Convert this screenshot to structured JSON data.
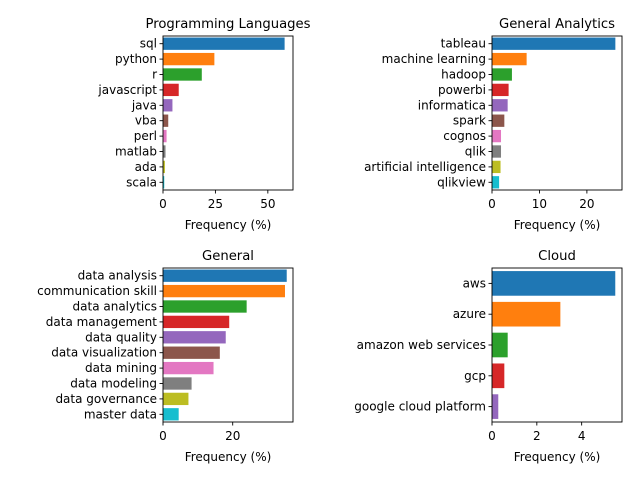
{
  "chart_data": [
    {
      "type": "bar",
      "orientation": "horizontal",
      "title": "Programming Languages",
      "xlabel": "Frequency (%)",
      "ylabel": "",
      "categories": [
        "sql",
        "python",
        "r",
        "javascript",
        "java",
        "vba",
        "perl",
        "matlab",
        "ada",
        "scala"
      ],
      "values": [
        58,
        24.5,
        18.5,
        7.5,
        4.5,
        2.5,
        1.7,
        1.2,
        0.9,
        0.6
      ],
      "xlim": [
        0,
        62
      ],
      "xticks": [
        0,
        25,
        50
      ],
      "colors": [
        "#1f77b4",
        "#ff7f0e",
        "#2ca02c",
        "#d62728",
        "#9467bd",
        "#8c564b",
        "#e377c2",
        "#7f7f7f",
        "#bcbd22",
        "#17becf"
      ]
    },
    {
      "type": "bar",
      "orientation": "horizontal",
      "title": "General Analytics",
      "xlabel": "Frequency (%)",
      "ylabel": "",
      "categories": [
        "tableau",
        "machine learning",
        "hadoop",
        "powerbi",
        "informatica",
        "spark",
        "cognos",
        "qlik",
        "artificial intelligence",
        "qlikview"
      ],
      "values": [
        26,
        7.3,
        4.2,
        3.5,
        3.3,
        2.6,
        1.9,
        1.9,
        1.8,
        1.5
      ],
      "xlim": [
        0,
        27.4
      ],
      "xticks": [
        0,
        10,
        20
      ],
      "colors": [
        "#1f77b4",
        "#ff7f0e",
        "#2ca02c",
        "#d62728",
        "#9467bd",
        "#8c564b",
        "#e377c2",
        "#7f7f7f",
        "#bcbd22",
        "#17becf"
      ]
    },
    {
      "type": "bar",
      "orientation": "horizontal",
      "title": "General",
      "xlabel": "Frequency (%)",
      "ylabel": "",
      "categories": [
        "data analysis",
        "communication skill",
        "data analytics",
        "data management",
        "data quality",
        "data visualization",
        "data mining",
        "data modeling",
        "data governance",
        "master data"
      ],
      "values": [
        35.5,
        35,
        24,
        19,
        18,
        16.3,
        14.5,
        8.2,
        7.3,
        4.5
      ],
      "xlim": [
        0,
        37.3
      ],
      "xticks": [
        0,
        20
      ],
      "colors": [
        "#1f77b4",
        "#ff7f0e",
        "#2ca02c",
        "#d62728",
        "#9467bd",
        "#8c564b",
        "#e377c2",
        "#7f7f7f",
        "#bcbd22",
        "#17becf"
      ]
    },
    {
      "type": "bar",
      "orientation": "horizontal",
      "title": "Cloud",
      "xlabel": "Frequency (%)",
      "ylabel": "",
      "categories": [
        "aws",
        "azure",
        "amazon web services",
        "gcp",
        "google cloud platform"
      ],
      "values": [
        5.5,
        3.05,
        0.7,
        0.55,
        0.28
      ],
      "xlim": [
        0,
        5.8
      ],
      "xticks": [
        0,
        2,
        4
      ],
      "colors": [
        "#1f77b4",
        "#ff7f0e",
        "#2ca02c",
        "#d62728",
        "#9467bd"
      ]
    }
  ]
}
